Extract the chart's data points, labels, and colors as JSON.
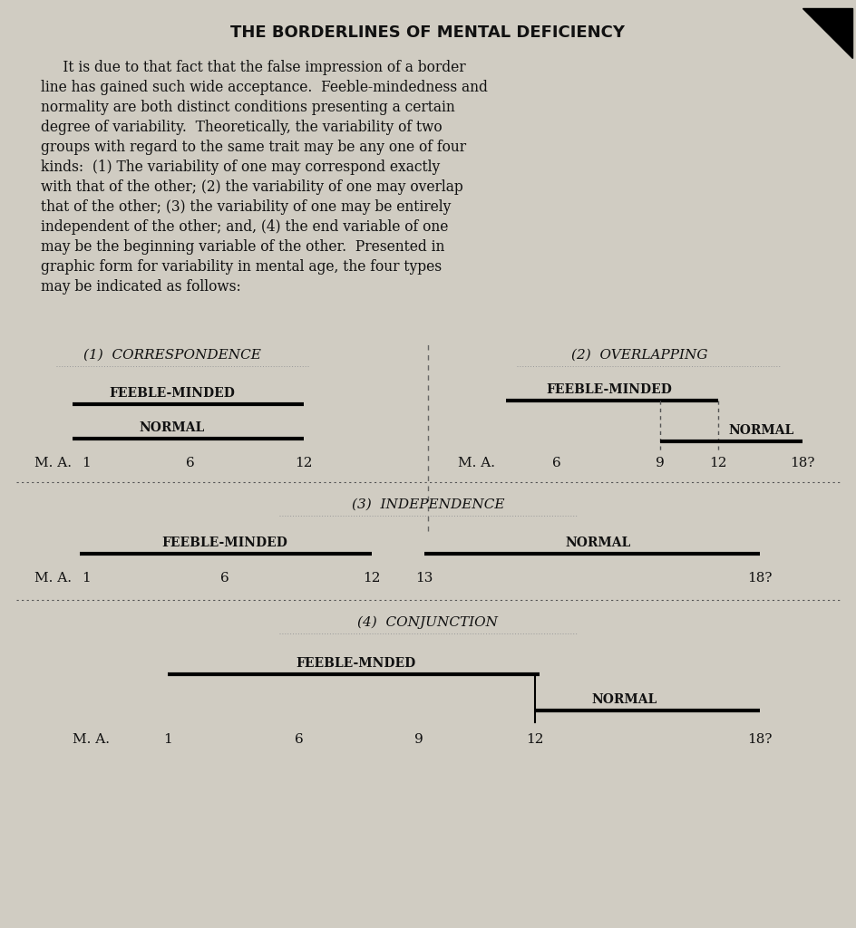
{
  "title": "THE BORDERLINES OF MENTAL DEFICIENCY",
  "body_lines": [
    "     It is due to that fact that the false impression of a border",
    "line has gained such wide acceptance.  Feeble-mindedness and",
    "normality are both distinct conditions presenting a certain",
    "degree of variability.  Theoretically, the variability of two",
    "groups with regard to the same trait may be any one of four",
    "kinds:  (1) The variability of one may correspond exactly",
    "with that of the other; (2) the variability of one may overlap",
    "that of the other; (3) the variability of one may be entirely",
    "independent of the other; and, (4) the end variable of one",
    "may be the beginning variable of the other.  Presented in",
    "graphic form for variability in mental age, the four types",
    "may be indicated as follows:"
  ],
  "background_color": "#d0ccc2",
  "text_color": "#111111",
  "section1_title": "(1)  CORRESPONDENCE",
  "section2_title": "(2)  OVERLAPPING",
  "section3_title": "(3)  INDEPENDENCE",
  "section4_title": "(4)  CONJUNCTION",
  "label_feeble": "FEEBLE-MINDED",
  "label_normal": "NORMAL",
  "label_ma": "M. A.",
  "label_feeble_mnded": "FEEBLE-MNDED"
}
